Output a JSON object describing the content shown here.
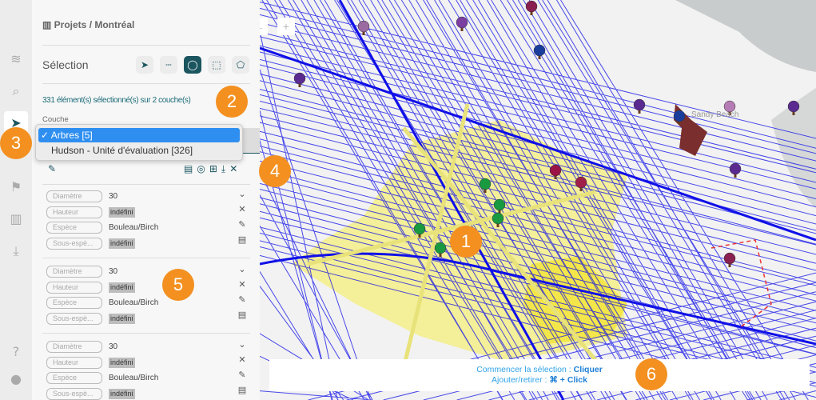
{
  "rail": {
    "items": [
      {
        "icon": "layers-icon",
        "glyph": "≋"
      },
      {
        "icon": "search-icon",
        "glyph": "⌕"
      },
      {
        "icon": "pointer-icon",
        "glyph": "➤",
        "active": true
      },
      {
        "icon": "flag-icon",
        "glyph": "⚑"
      },
      {
        "icon": "map-icon",
        "glyph": "▥"
      },
      {
        "icon": "download-icon",
        "glyph": "⤓"
      },
      {
        "icon": "help-icon",
        "glyph": "?"
      },
      {
        "icon": "user-icon",
        "glyph": "●"
      }
    ]
  },
  "panel": {
    "breadcrumb": "Projets / Montréal",
    "selection_title": "Sélection",
    "tools": [
      "pointer",
      "line",
      "circle",
      "rectangle",
      "polygon"
    ],
    "count_text": "331 élément(s) sélectionné(s) sur 2 couche(s)",
    "layer_label": "Couche",
    "layer_options": [
      {
        "label": "✓ Arbres [5]",
        "selected": true
      },
      {
        "label": "Hudson - Unité d'évaluation [326]",
        "selected": false
      }
    ],
    "records": [
      {
        "fields": [
          {
            "label": "Diamètre",
            "value": "30"
          },
          {
            "label": "Hauteur",
            "value": "indéfini",
            "undefined": true
          },
          {
            "label": "Espèce",
            "value": "Bouleau/Birch"
          },
          {
            "label": "Sous-espè...",
            "value": "indéfini",
            "undefined": true
          }
        ]
      },
      {
        "fields": [
          {
            "label": "Diamètre",
            "value": "30"
          },
          {
            "label": "Hauteur",
            "value": "indéfini",
            "undefined": true
          },
          {
            "label": "Espèce",
            "value": "Bouleau/Birch"
          },
          {
            "label": "Sous-espè...",
            "value": "indéfini",
            "undefined": true
          }
        ]
      },
      {
        "fields": [
          {
            "label": "Diamètre",
            "value": "30"
          },
          {
            "label": "Hauteur",
            "value": "indéfini",
            "undefined": true
          },
          {
            "label": "Espèce",
            "value": "Bouleau/Birch"
          },
          {
            "label": "Sous-espè...",
            "value": "indéfini",
            "undefined": true
          }
        ]
      }
    ]
  },
  "map": {
    "labels": [
      "Sandy Beach"
    ],
    "hint_line1": "Commencer la sélection : ",
    "hint_line1_action": "Cliquer",
    "hint_line2": "Ajouter/retirer : ",
    "hint_line2_action": "⌘ + Click",
    "colors": {
      "streets": "#1010e8",
      "selection": "#f5ef8a",
      "accent": "#1b5560",
      "marker": "#f39020"
    }
  },
  "markers": [
    "1",
    "2",
    "3",
    "4",
    "5",
    "6"
  ]
}
